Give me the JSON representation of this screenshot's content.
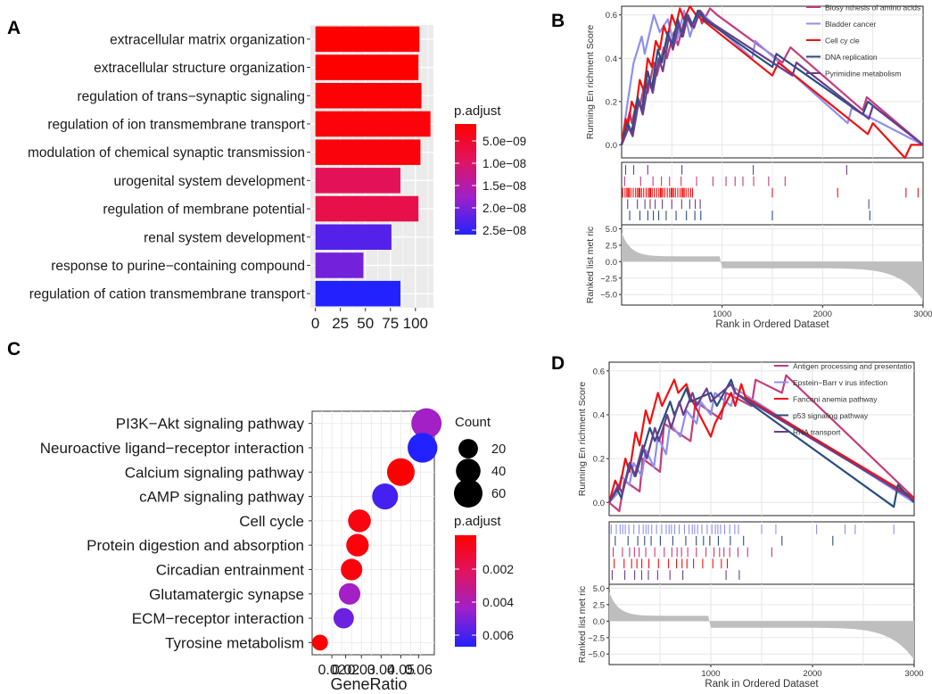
{
  "panel_labels": [
    "A",
    "B",
    "C",
    "D"
  ],
  "colors": {
    "high_sig": "#ff0000",
    "low_sig": "#2222ff",
    "grid": "#ebebeb",
    "metric_fill": "#bebebe",
    "B_series": [
      "#c43c7a",
      "#8f8fef",
      "#ee1111",
      "#2a4e7e",
      "#6a3d8e"
    ],
    "D_series": [
      "#c43c7a",
      "#8f8fef",
      "#ee1111",
      "#2a4e7e",
      "#6a3d8e"
    ]
  },
  "chart_data": [
    {
      "panel": "A",
      "type": "bar",
      "orientation": "horizontal",
      "categories": [
        "extracellular matrix organization",
        "extracellular structure organization",
        "regulation of trans−synaptic signaling",
        "regulation of ion transmembrane transport",
        "modulation of chemical synaptic transmission",
        "urogenital system development",
        "regulation of membrane potential",
        "renal system development",
        "response to purine−containing compound",
        "regulation of cation transmembrane transport"
      ],
      "values": [
        104,
        103,
        106,
        115,
        105,
        85,
        103,
        76,
        48,
        85
      ],
      "p_adjust": [
        4e-09,
        4e-09,
        4.5e-09,
        4.8e-09,
        5e-09,
        1.1e-08,
        1e-08,
        2.4e-08,
        2.2e-08,
        2.7e-08
      ],
      "x_ticks": [
        "0",
        "25",
        "50",
        "75",
        "100"
      ],
      "xlim": [
        -5,
        118
      ],
      "legend": {
        "title": "p.adjust",
        "labels": [
          "5.0e−09",
          "1.0e−08",
          "1.5e−08",
          "2.0e−08",
          "2.5e−08"
        ]
      }
    },
    {
      "panel": "B",
      "type": "line",
      "subtype": "gsea",
      "ylabel_top": "Running En richment Score",
      "ylabel_bottom": "Ranked list met ric",
      "xlabel": "Rank in Ordered Dataset",
      "x_ticks": [
        "1000",
        "2000",
        "3000"
      ],
      "y_ticks_top": [
        "0.0",
        "0.2",
        "0.4",
        "0.6"
      ],
      "y_ticks_bottom": [
        "5.0",
        "2.5",
        "0.0",
        "−2.5",
        "−5.0"
      ],
      "series": [
        {
          "name": "Biosy nthesis of amino acids",
          "x": [
            0,
            80,
            100,
            160,
            180,
            240,
            260,
            320,
            350,
            420,
            450,
            520,
            560,
            640,
            700,
            760,
            800,
            880,
            950,
            1600,
            1680,
            2400,
            2440,
            3000
          ],
          "y": [
            0.0,
            0.15,
            0.1,
            0.22,
            0.18,
            0.3,
            0.24,
            0.38,
            0.32,
            0.45,
            0.4,
            0.52,
            0.46,
            0.6,
            0.54,
            0.62,
            0.56,
            0.63,
            0.6,
            0.38,
            0.45,
            0.16,
            0.22,
            0.0
          ]
        },
        {
          "name": "Bladder cancer",
          "x": [
            0,
            60,
            120,
            200,
            230,
            320,
            380,
            460,
            520,
            560,
            620,
            680,
            720,
            780,
            860,
            1300,
            1330,
            2250,
            2290,
            3000
          ],
          "y": [
            0.0,
            0.2,
            0.38,
            0.5,
            0.42,
            0.6,
            0.52,
            0.58,
            0.46,
            0.5,
            0.62,
            0.5,
            0.56,
            0.62,
            0.58,
            0.4,
            0.48,
            0.1,
            0.17,
            0.0
          ]
        },
        {
          "name": "Cell cy cle",
          "x": [
            0,
            40,
            60,
            100,
            140,
            180,
            220,
            260,
            300,
            340,
            380,
            420,
            460,
            500,
            540,
            580,
            620,
            680,
            740,
            1500,
            1560,
            2450,
            2500,
            2820,
            2880,
            3000
          ],
          "y": [
            0.0,
            0.12,
            0.08,
            0.2,
            0.16,
            0.3,
            0.25,
            0.4,
            0.36,
            0.48,
            0.44,
            0.55,
            0.5,
            0.6,
            0.55,
            0.63,
            0.58,
            0.64,
            0.6,
            0.32,
            0.38,
            0.05,
            0.1,
            -0.06,
            0.0,
            0.0
          ]
        },
        {
          "name": "DNA replication",
          "x": [
            0,
            60,
            100,
            160,
            200,
            260,
            300,
            360,
            400,
            460,
            500,
            560,
            600,
            640,
            700,
            760,
            820,
            1500,
            1540,
            2400,
            2450,
            3000
          ],
          "y": [
            0.0,
            0.1,
            0.06,
            0.22,
            0.16,
            0.34,
            0.26,
            0.44,
            0.38,
            0.52,
            0.46,
            0.58,
            0.5,
            0.6,
            0.55,
            0.62,
            0.58,
            0.36,
            0.42,
            0.14,
            0.2,
            0.0
          ]
        },
        {
          "name": "Pyrimidine metabolism",
          "x": [
            0,
            70,
            110,
            170,
            210,
            270,
            310,
            370,
            410,
            470,
            510,
            570,
            610,
            660,
            720,
            780,
            840,
            1700,
            1740,
            2460,
            2500,
            3000
          ],
          "y": [
            0.0,
            0.08,
            0.04,
            0.2,
            0.14,
            0.3,
            0.24,
            0.4,
            0.34,
            0.5,
            0.44,
            0.56,
            0.5,
            0.6,
            0.54,
            0.62,
            0.58,
            0.32,
            0.38,
            0.12,
            0.18,
            0.0
          ]
        }
      ]
    },
    {
      "panel": "C",
      "type": "scatter",
      "subtype": "dotplot",
      "categories": [
        "PI3K−Akt signaling pathway",
        "Neuroactive ligand−receptor interaction",
        "Calcium signaling pathway",
        "cAMP signaling pathway",
        "Cell cycle",
        "Protein digestion and absorption",
        "Circadian entrainment",
        "Glutamatergic synapse",
        "ECM−receptor interaction",
        "Tyrosine metabolism"
      ],
      "gene_ratio": [
        0.063,
        0.061,
        0.05,
        0.042,
        0.029,
        0.028,
        0.025,
        0.024,
        0.021,
        0.009
      ],
      "count": [
        70,
        67,
        55,
        46,
        32,
        31,
        27,
        27,
        23,
        10
      ],
      "p_adjust": [
        0.0045,
        0.0068,
        0.0001,
        0.0062,
        0.0005,
        0.0003,
        0.0004,
        0.0045,
        0.0055,
        0.0002
      ],
      "xlabel": "GeneRatio",
      "x_tick_labels": [
        "0.02",
        "0.02",
        "0.03",
        "0.04",
        "0.05",
        "0.06"
      ],
      "x_tick_values": [
        0.015,
        0.022,
        0.03,
        0.04,
        0.05,
        0.059
      ],
      "xlim": [
        0.005,
        0.067
      ],
      "size_legend": {
        "title": "Count",
        "labels": [
          "20",
          "40",
          "60"
        ],
        "values": [
          20,
          40,
          60
        ]
      },
      "color_legend": {
        "title": "p.adjust",
        "labels": [
          "0.002",
          "0.004",
          "0.006"
        ]
      }
    },
    {
      "panel": "D",
      "type": "line",
      "subtype": "gsea",
      "ylabel_top": "Running En richment Score",
      "ylabel_bottom": "Ranked list met ric",
      "xlabel": "Rank in Ordered Dataset",
      "x_ticks": [
        "1000",
        "2000",
        "3000"
      ],
      "y_ticks_top": [
        "0.0",
        "0.2",
        "0.4",
        "0.6"
      ],
      "y_ticks_bottom": [
        "5.0",
        "2.5",
        "0.0",
        "−2.5",
        "−5.0"
      ],
      "series": [
        {
          "name": "Antigen processing and presentatio",
          "x": [
            0,
            100,
            150,
            300,
            330,
            500,
            540,
            800,
            850,
            1100,
            1150,
            1400,
            1440,
            1700,
            1740,
            3000
          ],
          "y": [
            0.0,
            -0.04,
            0.1,
            0.05,
            0.2,
            0.14,
            0.36,
            0.28,
            0.46,
            0.38,
            0.5,
            0.44,
            0.56,
            0.5,
            0.58,
            0.02
          ]
        },
        {
          "name": "Epstein−Barr v irus infection",
          "x": [
            0,
            80,
            120,
            200,
            240,
            320,
            360,
            440,
            480,
            560,
            600,
            700,
            760,
            860,
            900,
            1000,
            1040,
            1200,
            1240,
            3000
          ],
          "y": [
            0.0,
            0.04,
            0.12,
            0.08,
            0.18,
            0.12,
            0.24,
            0.16,
            0.3,
            0.22,
            0.36,
            0.3,
            0.42,
            0.36,
            0.46,
            0.4,
            0.5,
            0.44,
            0.52,
            0.0
          ]
        },
        {
          "name": "Fanconi anemia pathway",
          "x": [
            0,
            60,
            100,
            160,
            200,
            260,
            300,
            360,
            400,
            480,
            520,
            640,
            680,
            760,
            800,
            1000,
            1040,
            1200,
            1240,
            1300,
            1340,
            3000
          ],
          "y": [
            0.0,
            0.1,
            0.06,
            0.2,
            0.14,
            0.32,
            0.26,
            0.42,
            0.36,
            0.5,
            0.44,
            0.56,
            0.5,
            0.54,
            0.48,
            0.3,
            0.36,
            0.5,
            0.44,
            0.54,
            0.48,
            0.02
          ]
        },
        {
          "name": "p53 signaling pathway",
          "x": [
            0,
            80,
            120,
            200,
            260,
            400,
            450,
            600,
            640,
            760,
            800,
            1000,
            1060,
            1200,
            1240,
            2800,
            2840,
            3000
          ],
          "y": [
            0.0,
            0.06,
            0.02,
            0.18,
            0.12,
            0.34,
            0.28,
            0.46,
            0.4,
            0.52,
            0.46,
            0.5,
            0.44,
            0.56,
            0.5,
            -0.02,
            0.08,
            0.0
          ]
        },
        {
          "name": "RNA transport",
          "x": [
            0,
            90,
            130,
            210,
            250,
            330,
            370,
            450,
            490,
            570,
            610,
            690,
            730,
            820,
            860,
            960,
            1000,
            1200,
            1240,
            3000
          ],
          "y": [
            0.0,
            0.08,
            0.04,
            0.18,
            0.12,
            0.26,
            0.2,
            0.34,
            0.28,
            0.4,
            0.34,
            0.46,
            0.4,
            0.5,
            0.44,
            0.52,
            0.46,
            0.54,
            0.5,
            0.01
          ]
        }
      ]
    }
  ]
}
